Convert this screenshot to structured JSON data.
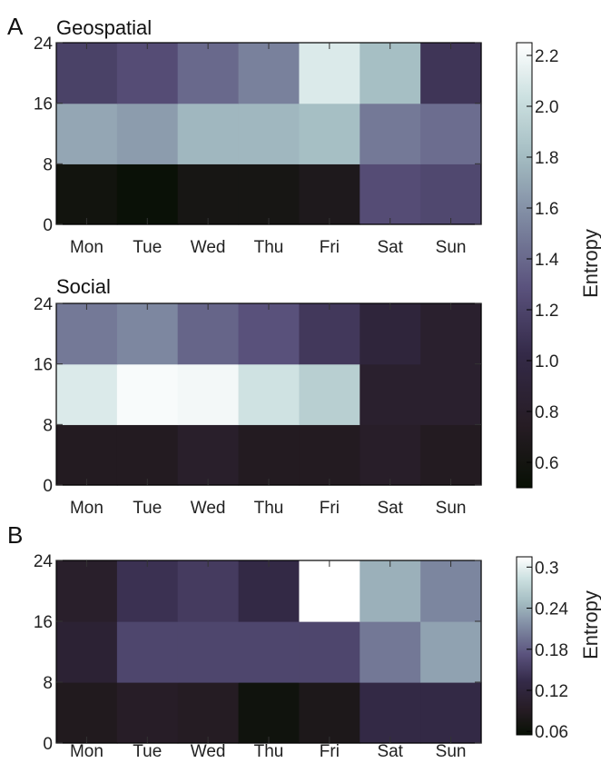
{
  "panel_letters": [
    "A",
    "B"
  ],
  "colorbar_label": "Entropy",
  "chart_data": [
    {
      "type": "heatmap",
      "panel": "A",
      "title": "Geospatial",
      "x_categories": [
        "Mon",
        "Tue",
        "Wed",
        "Thu",
        "Fri",
        "Sat",
        "Sun"
      ],
      "y_ticks": [
        "0",
        "8",
        "16",
        "24"
      ],
      "y_bins": [
        "0-8",
        "8-16",
        "16-24"
      ],
      "values": [
        [
          0.58,
          0.52,
          0.62,
          0.62,
          0.68,
          1.25,
          1.22
        ],
        [
          1.7,
          1.65,
          1.78,
          1.78,
          1.82,
          1.48,
          1.42
        ],
        [
          1.18,
          1.25,
          1.4,
          1.52,
          2.1,
          1.82,
          1.1
        ]
      ],
      "colorbar": {
        "label": "Entropy",
        "ticks": [
          "0.6",
          "0.8",
          "1.0",
          "1.2",
          "1.4",
          "1.6",
          "1.8",
          "2.0",
          "2.2"
        ],
        "range": [
          0.5,
          2.25
        ]
      }
    },
    {
      "type": "heatmap",
      "panel": "A",
      "title": "Social",
      "x_categories": [
        "Mon",
        "Tue",
        "Wed",
        "Thu",
        "Fri",
        "Sat",
        "Sun"
      ],
      "y_ticks": [
        "0",
        "8",
        "16",
        "24"
      ],
      "y_bins": [
        "0-8",
        "8-16",
        "16-24"
      ],
      "values": [
        [
          0.72,
          0.72,
          0.8,
          0.72,
          0.72,
          0.78,
          0.72
        ],
        [
          2.1,
          2.22,
          2.2,
          2.05,
          1.92,
          0.82,
          0.82
        ],
        [
          1.48,
          1.55,
          1.38,
          1.28,
          1.12,
          0.92,
          0.82
        ]
      ],
      "colorbar": {
        "label": "Entropy",
        "ticks": [
          "0.6",
          "0.8",
          "1.0",
          "1.2",
          "1.4",
          "1.6",
          "1.8",
          "2.0",
          "2.2"
        ],
        "range": [
          0.5,
          2.25
        ]
      }
    },
    {
      "type": "heatmap",
      "panel": "B",
      "title": "",
      "x_categories": [
        "Mon",
        "Tue",
        "Wed",
        "Thu",
        "Fri",
        "Sat",
        "Sun"
      ],
      "y_ticks": [
        "0",
        "8",
        "16",
        "24"
      ],
      "y_bins": [
        "0-8",
        "8-16",
        "16-24"
      ],
      "values": [
        [
          0.085,
          0.095,
          0.09,
          0.065,
          0.08,
          0.13,
          0.13
        ],
        [
          0.11,
          0.16,
          0.16,
          0.16,
          0.16,
          0.2,
          0.23
        ],
        [
          0.1,
          0.14,
          0.15,
          0.13,
          0.32,
          0.24,
          0.21
        ]
      ],
      "colorbar": {
        "label": "Entropy",
        "ticks": [
          "0.06",
          "0.12",
          "0.18",
          "0.24",
          "0.3"
        ],
        "range": [
          0.055,
          0.315
        ]
      }
    }
  ]
}
